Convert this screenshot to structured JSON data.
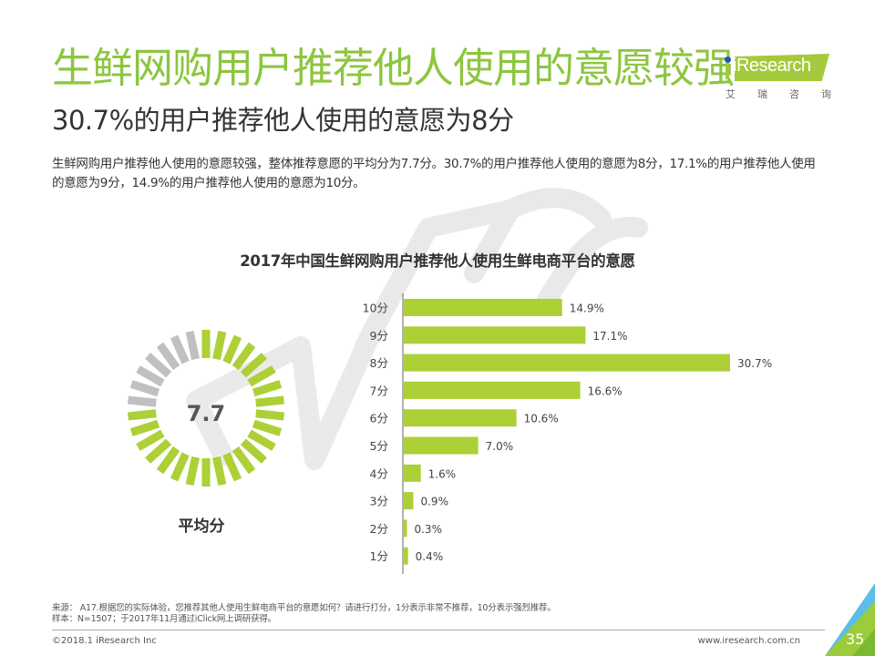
{
  "header": {
    "title": "生鲜网购用户推荐他人使用的意愿较强",
    "subtitle": "30.7%的用户推荐他人使用的意愿为8分",
    "description": "生鲜网购用户推荐他人使用的意愿较强，整体推荐意愿的平均分为7.7分。30.7%的用户推荐他人使用的意愿为8分，17.1%的用户推荐他人使用的意愿为9分，14.9%的用户推荐他人使用的意愿为10分。"
  },
  "logo": {
    "name": "iResearch",
    "cn": [
      "艾",
      "瑞",
      "咨",
      "询"
    ]
  },
  "colors": {
    "accent": "#8cc63f",
    "bar": "#acd036",
    "gauge_gray": "#c0c0c0",
    "text": "#333333"
  },
  "chart_data": [
    {
      "type": "gauge",
      "value": 7.7,
      "max": 10,
      "label": "平均分"
    },
    {
      "type": "bar",
      "orientation": "horizontal",
      "title": "2017年中国生鲜网购用户推荐他人使用生鲜电商平台的意愿",
      "categories": [
        "10分",
        "9分",
        "8分",
        "7分",
        "6分",
        "5分",
        "4分",
        "3分",
        "2分",
        "1分"
      ],
      "values": [
        14.9,
        17.1,
        30.7,
        16.6,
        10.6,
        7.0,
        1.6,
        0.9,
        0.3,
        0.4
      ],
      "value_labels": [
        "14.9%",
        "17.1%",
        "30.7%",
        "16.6%",
        "10.6%",
        "7.0%",
        "1.6%",
        "0.9%",
        "0.3%",
        "0.4%"
      ],
      "xlabel": "",
      "ylabel": "",
      "xlim": [
        0,
        35
      ],
      "unit": "%",
      "grid": false,
      "legend": "none"
    }
  ],
  "gauge_value_text": "7.7",
  "footer": {
    "source": "来源： A17.根据您的实际体验，您推荐其他人使用生鲜电商平台的意愿如何？请进行打分，1分表示非常不推荐，10分表示强烈推荐。",
    "sample": "样本：N=1507；于2017年11月通过iClick网上调研获得。",
    "copyright": "©2018.1 iResearch Inc",
    "website": "www.iresearch.com.cn",
    "page_number": "35"
  }
}
